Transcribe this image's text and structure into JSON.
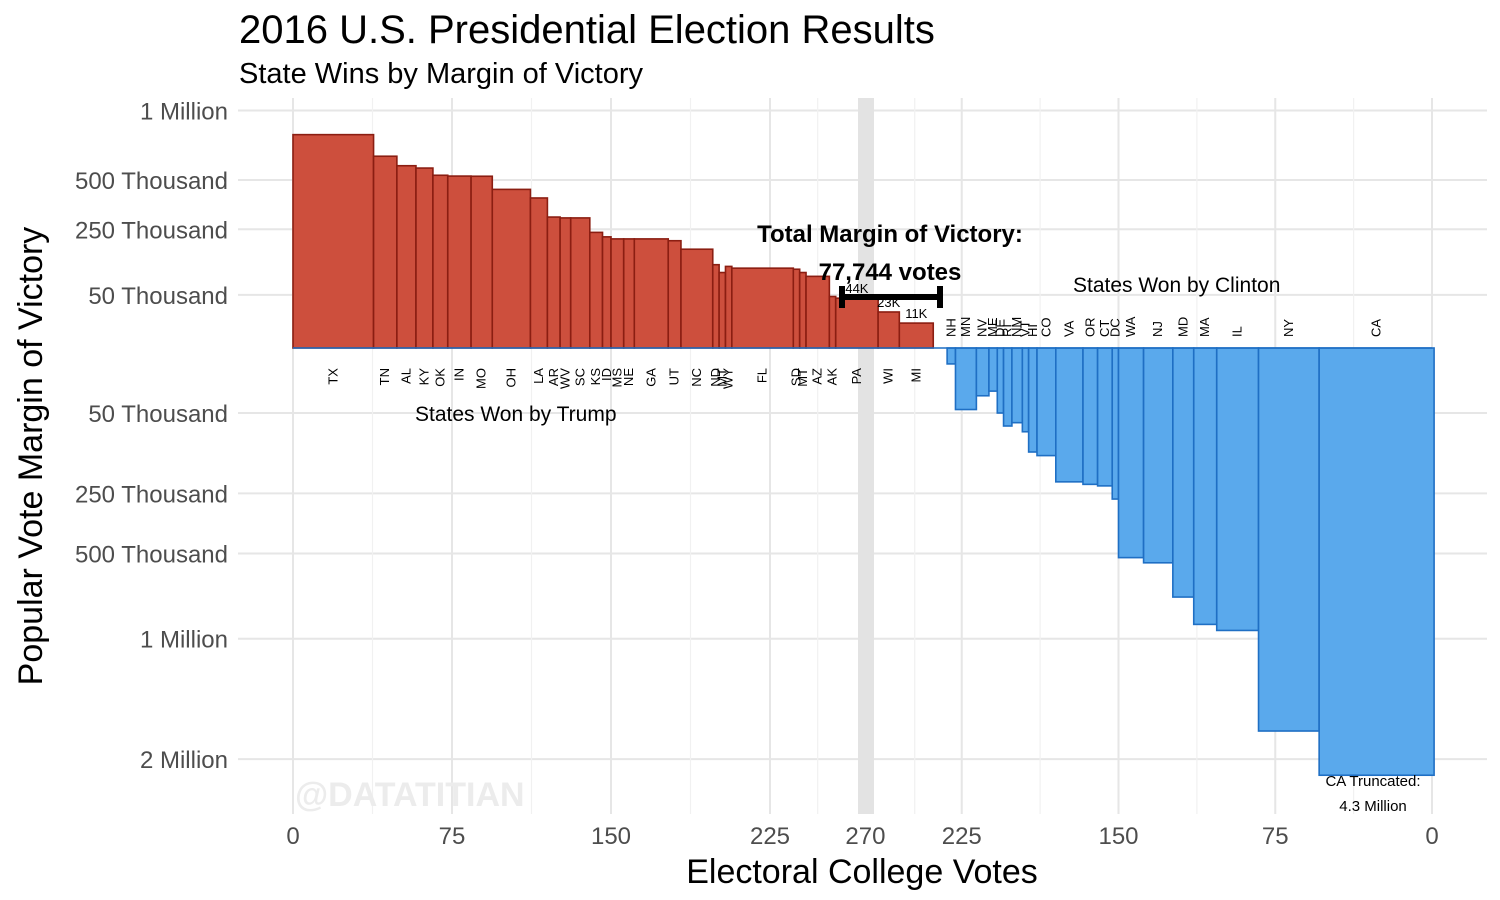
{
  "title": "2016 U.S. Presidential Election Results",
  "subtitle": "State Wins by Margin of Victory",
  "watermark": "@DATATITIAN",
  "colors": {
    "trump": "#cd4f3d",
    "trump_border": "#8b1e12",
    "clinton": "#5aa9ec",
    "clinton_border": "#1f6fc4",
    "threshold": "#e3e3e3"
  },
  "chart_data": {
    "type": "bar",
    "xlabel": "Electoral College Votes",
    "ylabel": "Popular Vote Margin of Victory",
    "y_scale": "sqrt",
    "y_ticks_up": [
      "1 Million",
      "500 Thousand",
      "250 Thousand",
      "50 Thousand"
    ],
    "y_ticks_down": [
      "50 Thousand",
      "250 Thousand",
      "500 Thousand",
      "1 Million",
      "2 Million"
    ],
    "x_ticks_left": [
      "0",
      "75",
      "150",
      "225",
      "270"
    ],
    "x_ticks_right": [
      "225",
      "150",
      "75",
      "0"
    ],
    "threshold_electoral_votes": 270,
    "groups": [
      {
        "name": "States Won by Trump",
        "label": "States Won by Trump"
      },
      {
        "name": "States Won by Clinton",
        "label": "States Won by Clinton"
      }
    ],
    "trump_states": [
      {
        "state": "TX",
        "ev": 38,
        "margin": 807000
      },
      {
        "state": "TN",
        "ev": 11,
        "margin": 652000
      },
      {
        "state": "AL",
        "ev": 9,
        "margin": 589000
      },
      {
        "state": "KY",
        "ev": 8,
        "margin": 574000
      },
      {
        "state": "OK",
        "ev": 7,
        "margin": 529000
      },
      {
        "state": "IN",
        "ev": 11,
        "margin": 524000
      },
      {
        "state": "MO",
        "ev": 10,
        "margin": 523000
      },
      {
        "state": "OH",
        "ev": 18,
        "margin": 446000
      },
      {
        "state": "LA",
        "ev": 8,
        "margin": 399000
      },
      {
        "state": "AR",
        "ev": 6,
        "margin": 304000
      },
      {
        "state": "WV",
        "ev": 5,
        "margin": 300000
      },
      {
        "state": "SC",
        "ev": 9,
        "margin": 300000
      },
      {
        "state": "KS",
        "ev": 6,
        "margin": 237000
      },
      {
        "state": "ID",
        "ev": 4,
        "margin": 219000
      },
      {
        "state": "MS",
        "ev": 6,
        "margin": 211000
      },
      {
        "state": "NE",
        "ev": 5,
        "margin": 211000
      },
      {
        "state": "GA",
        "ev": 16,
        "margin": 211000
      },
      {
        "state": "UT",
        "ev": 6,
        "margin": 204000
      },
      {
        "state": "NC",
        "ev": 15,
        "margin": 173000
      },
      {
        "state": "ND",
        "ev": 3,
        "margin": 123000
      },
      {
        "state": "MT",
        "ev": 3,
        "margin": 101000
      },
      {
        "state": "WY",
        "ev": 3,
        "margin": 118000
      },
      {
        "state": "FL",
        "ev": 29,
        "margin": 113000
      },
      {
        "state": "SD",
        "ev": 3,
        "margin": 110000
      },
      {
        "state": "MT",
        "ev": 3,
        "margin": 101000
      },
      {
        "state": "AZ",
        "ev": 11,
        "margin": 91000
      },
      {
        "state": "AK",
        "ev": 3,
        "margin": 47000
      },
      {
        "state": "PA",
        "ev": 20,
        "margin": 44000
      },
      {
        "state": "WI",
        "ev": 10,
        "margin": 23000
      },
      {
        "state": "MI",
        "ev": 16,
        "margin": 11000
      }
    ],
    "clinton_states": [
      {
        "state": "NH",
        "ev": 4,
        "margin": 3000
      },
      {
        "state": "MN",
        "ev": 10,
        "margin": 44800
      },
      {
        "state": "NV",
        "ev": 6,
        "margin": 27000
      },
      {
        "state": "ME",
        "ev": 4,
        "margin": 22000
      },
      {
        "state": "DE",
        "ev": 3,
        "margin": 50000
      },
      {
        "state": "RI",
        "ev": 4,
        "margin": 72000
      },
      {
        "state": "NM",
        "ev": 5,
        "margin": 66000
      },
      {
        "state": "VT",
        "ev": 3,
        "margin": 83000
      },
      {
        "state": "HI",
        "ev": 4,
        "margin": 128000
      },
      {
        "state": "CO",
        "ev": 9,
        "margin": 137000
      },
      {
        "state": "VA",
        "ev": 13,
        "margin": 212000
      },
      {
        "state": "OR",
        "ev": 7,
        "margin": 220000
      },
      {
        "state": "CT",
        "ev": 7,
        "margin": 225000
      },
      {
        "state": "DC",
        "ev": 3,
        "margin": 270000
      },
      {
        "state": "WA",
        "ev": 12,
        "margin": 520000
      },
      {
        "state": "NJ",
        "ev": 14,
        "margin": 546000
      },
      {
        "state": "MD",
        "ev": 10,
        "margin": 734000
      },
      {
        "state": "MA",
        "ev": 11,
        "margin": 904000
      },
      {
        "state": "IL",
        "ev": 20,
        "margin": 944000
      },
      {
        "state": "NY",
        "ev": 29,
        "margin": 1736000
      },
      {
        "state": "CA",
        "ev": 55,
        "margin": 2160000
      }
    ],
    "bar_labels": [
      {
        "state": "PA",
        "text": "44K"
      },
      {
        "state": "WI",
        "text": "23K"
      },
      {
        "state": "MI",
        "text": "11K"
      }
    ],
    "annotations": {
      "total_title": "Total Margin of Victory:",
      "total_value": "77,744 votes",
      "ca_truncated_line1": "CA Truncated:",
      "ca_truncated_line2": "4.3 Million"
    }
  }
}
